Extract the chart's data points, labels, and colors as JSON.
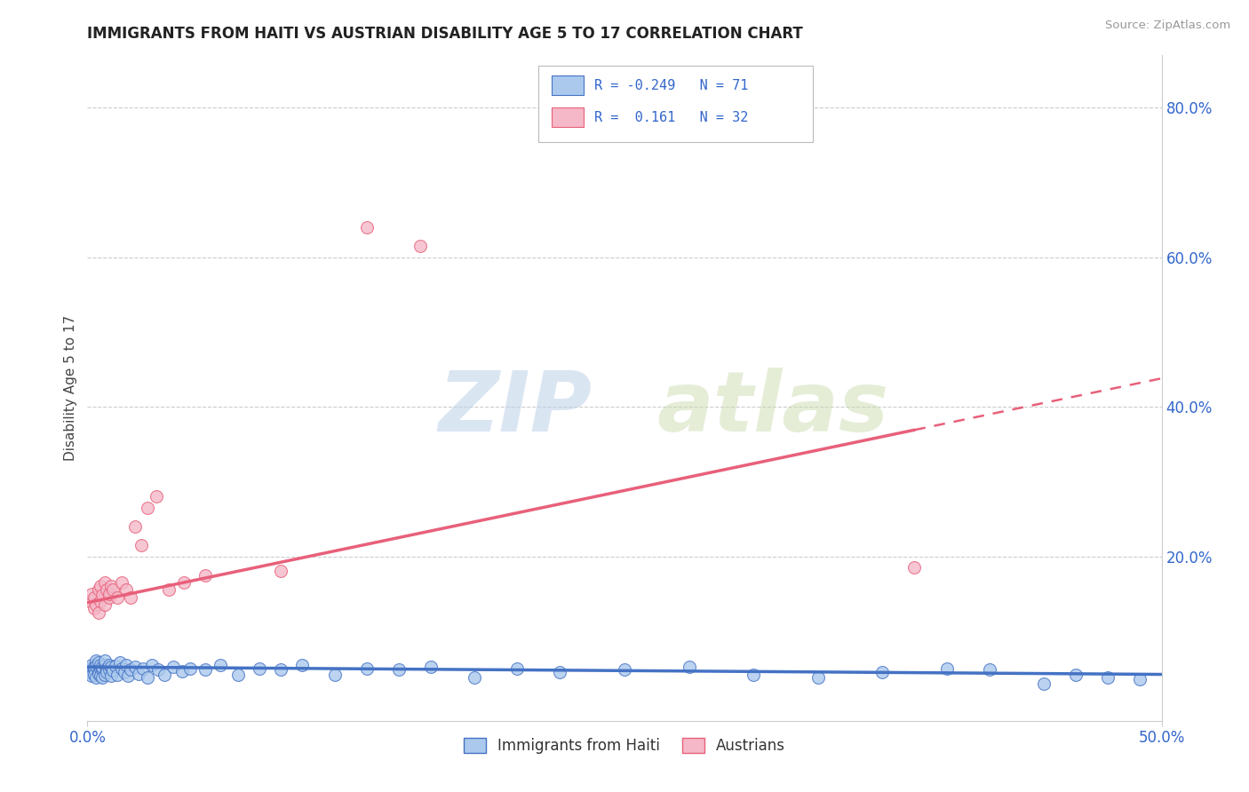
{
  "title": "IMMIGRANTS FROM HAITI VS AUSTRIAN DISABILITY AGE 5 TO 17 CORRELATION CHART",
  "source": "Source: ZipAtlas.com",
  "ylabel": "Disability Age 5 to 17",
  "legend_haiti": "Immigrants from Haiti",
  "legend_austrians": "Austrians",
  "r_haiti": -0.249,
  "n_haiti": 71,
  "r_austrians": 0.161,
  "n_austrians": 32,
  "color_haiti": "#aac9ed",
  "color_austrians": "#f4b8c8",
  "line_haiti": "#4472c4",
  "line_austrians": "#e8607a",
  "watermark_zip": "ZIP",
  "watermark_atlas": "atlas",
  "xlim": [
    0.0,
    0.5
  ],
  "ylim": [
    -0.02,
    0.87
  ],
  "right_ytick_vals": [
    0.2,
    0.4,
    0.6,
    0.8
  ],
  "right_ytick_labels": [
    "20.0%",
    "40.0%",
    "60.0%",
    "80.0%"
  ],
  "xtick_vals": [
    0.0,
    0.5
  ],
  "xtick_labels": [
    "0.0%",
    "50.0%"
  ],
  "haiti_x": [
    0.001,
    0.001,
    0.002,
    0.002,
    0.003,
    0.003,
    0.003,
    0.004,
    0.004,
    0.004,
    0.005,
    0.005,
    0.005,
    0.006,
    0.006,
    0.006,
    0.007,
    0.007,
    0.007,
    0.008,
    0.008,
    0.008,
    0.009,
    0.009,
    0.01,
    0.01,
    0.011,
    0.011,
    0.012,
    0.013,
    0.014,
    0.015,
    0.016,
    0.017,
    0.018,
    0.019,
    0.02,
    0.022,
    0.024,
    0.026,
    0.028,
    0.03,
    0.033,
    0.036,
    0.04,
    0.044,
    0.048,
    0.055,
    0.062,
    0.07,
    0.08,
    0.09,
    0.1,
    0.115,
    0.13,
    0.145,
    0.16,
    0.18,
    0.2,
    0.22,
    0.25,
    0.28,
    0.31,
    0.34,
    0.37,
    0.4,
    0.42,
    0.445,
    0.46,
    0.475,
    0.49
  ],
  "haiti_y": [
    0.05,
    0.045,
    0.055,
    0.04,
    0.048,
    0.052,
    0.042,
    0.06,
    0.038,
    0.053,
    0.045,
    0.058,
    0.043,
    0.05,
    0.055,
    0.04,
    0.048,
    0.052,
    0.038,
    0.055,
    0.042,
    0.06,
    0.05,
    0.045,
    0.048,
    0.055,
    0.04,
    0.052,
    0.047,
    0.053,
    0.042,
    0.058,
    0.05,
    0.045,
    0.055,
    0.04,
    0.048,
    0.052,
    0.043,
    0.05,
    0.038,
    0.055,
    0.048,
    0.042,
    0.052,
    0.046,
    0.05,
    0.048,
    0.055,
    0.042,
    0.05,
    0.048,
    0.055,
    0.042,
    0.05,
    0.048,
    0.052,
    0.038,
    0.05,
    0.045,
    0.048,
    0.052,
    0.042,
    0.038,
    0.045,
    0.05,
    0.048,
    0.03,
    0.042,
    0.038,
    0.035
  ],
  "austrian_x": [
    0.001,
    0.002,
    0.003,
    0.003,
    0.004,
    0.005,
    0.005,
    0.006,
    0.006,
    0.007,
    0.008,
    0.008,
    0.009,
    0.01,
    0.01,
    0.011,
    0.012,
    0.014,
    0.016,
    0.018,
    0.02,
    0.022,
    0.025,
    0.028,
    0.032,
    0.038,
    0.045,
    0.055,
    0.09,
    0.13,
    0.155,
    0.385
  ],
  "austrian_y": [
    0.14,
    0.15,
    0.13,
    0.145,
    0.135,
    0.155,
    0.125,
    0.16,
    0.14,
    0.148,
    0.165,
    0.135,
    0.155,
    0.145,
    0.15,
    0.16,
    0.155,
    0.145,
    0.165,
    0.155,
    0.145,
    0.24,
    0.215,
    0.265,
    0.28,
    0.155,
    0.165,
    0.175,
    0.18,
    0.64,
    0.615,
    0.185
  ],
  "line_haiti_intercept": 0.052,
  "line_haiti_slope": -0.02,
  "line_austrian_intercept": 0.138,
  "line_austrian_slope": 0.6
}
